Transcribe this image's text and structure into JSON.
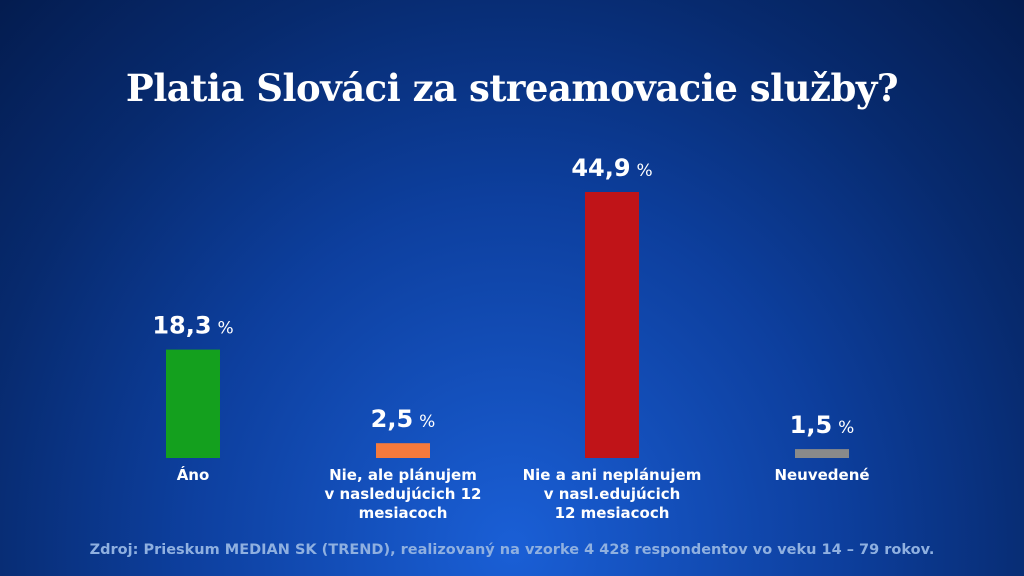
{
  "chart_data": {
    "type": "bar",
    "title": "Platia Slováci za streamovacie služby?",
    "categories": [
      "Áno",
      "Nie, ale plánujem v nasledujúcich 12 mesiacoch",
      "Nie a ani neplánujem v nasl.edujúcich 12 mesiacoch",
      "Neuvedené"
    ],
    "category_lines": [
      [
        "Áno"
      ],
      [
        "Nie, ale plánujem",
        "v nasledujúcich 12",
        "mesiacoch"
      ],
      [
        "Nie a ani neplánujem",
        "v nasl.edujúcich",
        "12 mesiacoch"
      ],
      [
        "Neuvedené"
      ]
    ],
    "values": [
      18.3,
      2.5,
      44.9,
      1.5
    ],
    "value_labels": [
      "18,3",
      "2,5",
      "44,9",
      "1,5"
    ],
    "unit": "%",
    "colors": [
      "#14a01e",
      "#f57a3c",
      "#c01418",
      "#8a8a8a"
    ],
    "ylim": [
      0,
      44.9
    ],
    "grid": false,
    "legend": "none"
  },
  "source": "Zdroj: Prieskum MEDIAN SK (TREND), realizovaný na vzorke 4 428 respondentov vo veku 14 – 79 rokov."
}
